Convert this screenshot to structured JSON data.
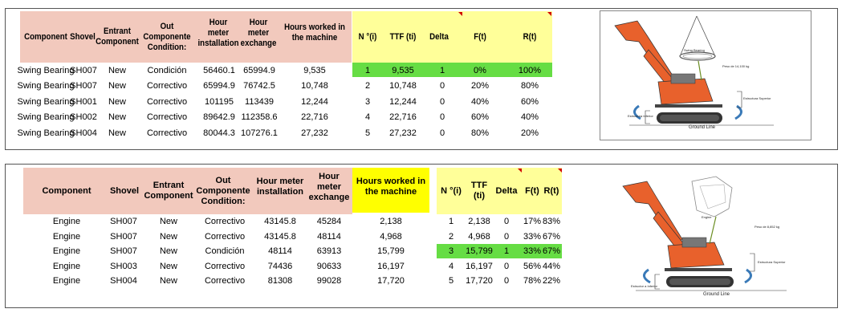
{
  "table1": {
    "headers": [
      "Component",
      "Shovel",
      "Entrant Component",
      "Out Componente Condition:",
      "Hour meter installation",
      "Hour meter exchange",
      "Hours worked in the machine"
    ],
    "rows": [
      [
        "Swing Bearing",
        "SH007",
        "New",
        "Condición",
        "56460.1",
        "65994.9",
        "9,535"
      ],
      [
        "Swing Bearing",
        "SH007",
        "New",
        "Correctivo",
        "65994.9",
        "76742.5",
        "10,748"
      ],
      [
        "Swing Bearing",
        "SH001",
        "New",
        "Correctivo",
        "101195",
        "113439",
        "12,244"
      ],
      [
        "Swing Bearing",
        "SH002",
        "New",
        "Correctivo",
        "89642.9",
        "112358.6",
        "22,716"
      ],
      [
        "Swing Bearing",
        "SH004",
        "New",
        "Correctivo",
        "80044.3",
        "107276.1",
        "27,232"
      ]
    ],
    "rel_headers": [
      "N °(i)",
      "TTF (ti)",
      "Delta",
      "F(t)",
      "R(t)"
    ],
    "rel_rows": [
      [
        "1",
        "9,535",
        "1",
        "0%",
        "100%"
      ],
      [
        "2",
        "10,748",
        "0",
        "20%",
        "80%"
      ],
      [
        "3",
        "12,244",
        "0",
        "40%",
        "60%"
      ],
      [
        "4",
        "22,716",
        "0",
        "60%",
        "40%"
      ],
      [
        "5",
        "27,232",
        "0",
        "80%",
        "20%"
      ]
    ],
    "highlight_row": 0,
    "figure_labels": {
      "bearing": "Swing Bearing",
      "weight": "Peso de 14,100 kg",
      "upper": "Estructura Superior",
      "lower": "Estructura Inferior",
      "ground": "Ground Line"
    }
  },
  "table2": {
    "headers": [
      "Component",
      "Shovel",
      "Entrant Component",
      "Out Componente Condition:",
      "Hour meter installation",
      "Hour meter exchange",
      "Hours worked in the machine"
    ],
    "rows": [
      [
        "Engine",
        "SH007",
        "New",
        "Correctivo",
        "43145.8",
        "45284",
        "2,138"
      ],
      [
        "Engine",
        "SH007",
        "New",
        "Correctivo",
        "43145.8",
        "48114",
        "4,968"
      ],
      [
        "Engine",
        "SH007",
        "New",
        "Condición",
        "48114",
        "63913",
        "15,799"
      ],
      [
        "Engine",
        "SH003",
        "New",
        "Correctivo",
        "74436",
        "90633",
        "16,197"
      ],
      [
        "Engine",
        "SH004",
        "New",
        "Correctivo",
        "81308",
        "99028",
        "17,720"
      ]
    ],
    "rel_headers": [
      "N °(i)",
      "TTF (ti)",
      "Delta",
      "F(t)",
      "R(t)"
    ],
    "rel_rows": [
      [
        "1",
        "2,138",
        "0",
        "17%",
        "83%"
      ],
      [
        "2",
        "4,968",
        "0",
        "33%",
        "67%"
      ],
      [
        "3",
        "15,799",
        "1",
        "33%",
        "67%"
      ],
      [
        "4",
        "16,197",
        "0",
        "56%",
        "44%"
      ],
      [
        "5",
        "17,720",
        "0",
        "78%",
        "22%"
      ]
    ],
    "highlight_row": 2,
    "figure_labels": {
      "bearing": "Engine",
      "weight": "Peso de 8,852 kg",
      "upper": "Estructura Superior",
      "lower": "Estructor a Inferior",
      "ground": "Ground Line"
    }
  },
  "colors": {
    "pink_header": "#f2c9bd",
    "yellow_header": "#ffff99",
    "yellow_strong": "#ffff00",
    "green_highlight": "#66dd44",
    "shovel_orange": "#e8612c",
    "arrow_blue": "#3a7ab8"
  }
}
